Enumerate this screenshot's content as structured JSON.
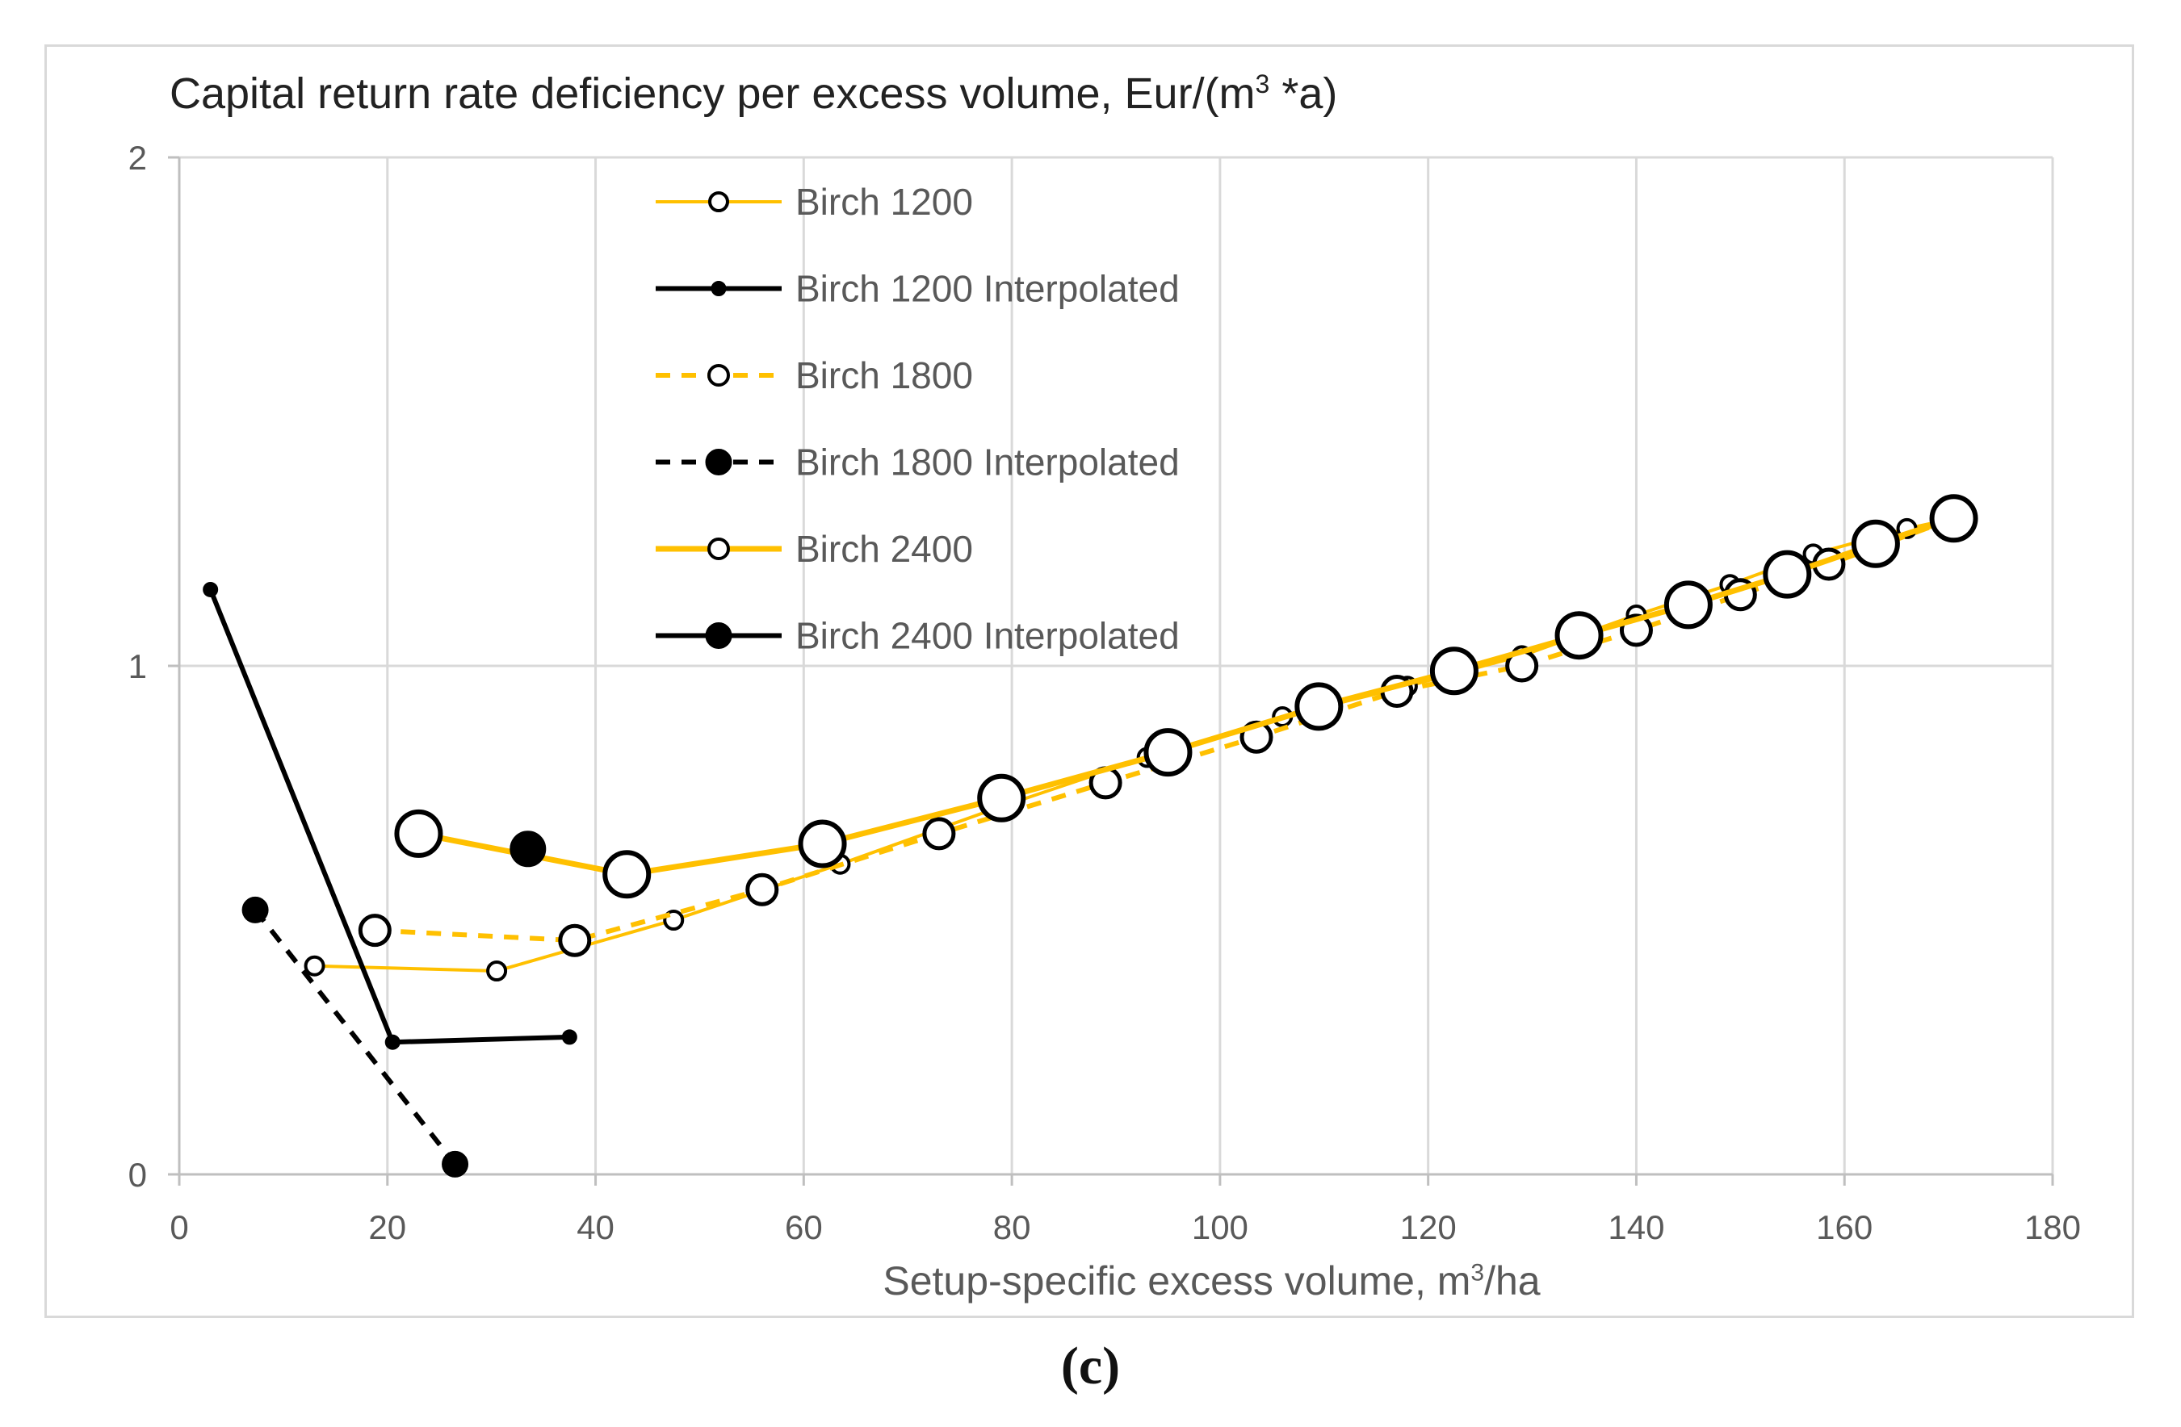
{
  "chart_data": {
    "type": "line",
    "title_text": "Capital return rate deficiency per excess volume,  Eur/(m",
    "title_sup": "3",
    "title_tail": " *a)",
    "xlabel_text": "Setup-specific excess volume, m",
    "xlabel_sup": "3",
    "xlabel_tail": "/ha",
    "xlim": [
      0,
      180
    ],
    "ylim": [
      0,
      2
    ],
    "x_ticks": [
      0,
      20,
      40,
      60,
      80,
      100,
      120,
      140,
      160,
      180
    ],
    "y_ticks": [
      0,
      1,
      2
    ],
    "grid": "vertical and horizontal",
    "legend_position": "top-center",
    "caption": "(c)",
    "series": [
      {
        "name": "Birch 1200",
        "color": "#FFC000",
        "line": "solid-thin",
        "marker": "open-small",
        "points": [
          [
            13,
            0.41
          ],
          [
            30.5,
            0.4
          ],
          [
            47.5,
            0.5
          ],
          [
            63.5,
            0.61
          ],
          [
            78.5,
            0.72
          ],
          [
            93,
            0.82
          ],
          [
            106,
            0.9
          ],
          [
            118,
            0.96
          ],
          [
            129,
            1.02
          ],
          [
            140,
            1.1
          ],
          [
            149,
            1.16
          ],
          [
            157,
            1.22
          ],
          [
            166,
            1.27
          ],
          [
            170.5,
            1.29
          ]
        ]
      },
      {
        "name": "Birch 1200 Interpolated",
        "color": "#000000",
        "line": "solid",
        "marker": "filled-small",
        "points": [
          [
            3,
            1.15
          ],
          [
            20.5,
            0.26
          ],
          [
            37.5,
            0.27
          ]
        ]
      },
      {
        "name": "Birch 1800",
        "color": "#FFC000",
        "line": "dashed",
        "marker": "open-medium",
        "points": [
          [
            18.8,
            0.48
          ],
          [
            38,
            0.46
          ],
          [
            56,
            0.56
          ],
          [
            73,
            0.67
          ],
          [
            89,
            0.77
          ],
          [
            103.5,
            0.86
          ],
          [
            117,
            0.95
          ],
          [
            129,
            1.0
          ],
          [
            140,
            1.07
          ],
          [
            150,
            1.14
          ],
          [
            158.5,
            1.2
          ],
          [
            170.5,
            1.29
          ]
        ]
      },
      {
        "name": "Birch 1800 Interpolated",
        "color": "#000000",
        "line": "dashed",
        "marker": "filled-medium",
        "points": [
          [
            7.3,
            0.52
          ],
          [
            26.5,
            0.02
          ]
        ]
      },
      {
        "name": "Birch 2400",
        "color": "#FFC000",
        "line": "solid-thick",
        "marker": "open-large",
        "points": [
          [
            23,
            0.67
          ],
          [
            43,
            0.59
          ],
          [
            61.8,
            0.65
          ],
          [
            79,
            0.74
          ],
          [
            95,
            0.83
          ],
          [
            109.5,
            0.92
          ],
          [
            122.5,
            0.99
          ],
          [
            134.5,
            1.06
          ],
          [
            145,
            1.12
          ],
          [
            154.5,
            1.18
          ],
          [
            163,
            1.24
          ],
          [
            170.5,
            1.29
          ]
        ]
      },
      {
        "name": "Birch 2400 Interpolated",
        "color": "#000000",
        "line": "solid",
        "marker": "filled-large",
        "points": [
          [
            33.5,
            0.64
          ]
        ]
      }
    ]
  }
}
